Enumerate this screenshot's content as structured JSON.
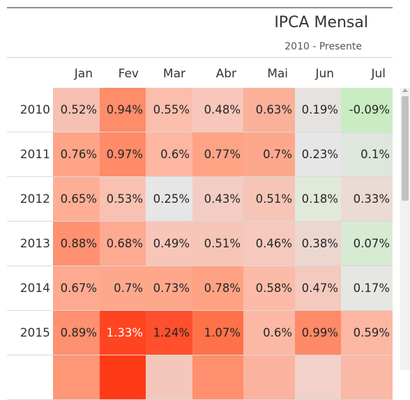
{
  "title": "IPCA Mensal",
  "subtitle": "2010 - Presente",
  "months": [
    "Jan",
    "Fev",
    "Mar",
    "Abr",
    "Mai",
    "Jun",
    "Jul"
  ],
  "rows": [
    {
      "year": "2010",
      "values": [
        "0.52%",
        "0.94%",
        "0.55%",
        "0.48%",
        "0.63%",
        "0.19%",
        "-0.09%"
      ],
      "colors": [
        "#f6c0b2",
        "#ff8c6b",
        "#fbbeac",
        "#f8c6ba",
        "#fbb09a",
        "#e5e2df",
        "#c9ecc2"
      ]
    },
    {
      "year": "2011",
      "values": [
        "0.76%",
        "0.97%",
        "0.6%",
        "0.77%",
        "0.7%",
        "0.23%",
        "0.1%"
      ],
      "colors": [
        "#ffa486",
        "#ff8b69",
        "#fdb6a2",
        "#ffa385",
        "#fda88d",
        "#e6e6e6",
        "#dde7dc"
      ]
    },
    {
      "year": "2012",
      "values": [
        "0.65%",
        "0.53%",
        "0.25%",
        "0.43%",
        "0.51%",
        "0.18%",
        "0.33%"
      ],
      "colors": [
        "#feae95",
        "#f9c1b2",
        "#e6e6e6",
        "#f3cdc4",
        "#f6c5b8",
        "#e1ead9",
        "#ecdad5"
      ]
    },
    {
      "year": "2013",
      "values": [
        "0.88%",
        "0.68%",
        "0.49%",
        "0.51%",
        "0.46%",
        "0.38%",
        "0.07%"
      ],
      "colors": [
        "#ff9171",
        "#fdaa91",
        "#f7c6b9",
        "#f6c5b8",
        "#f5c9bd",
        "#ecd6d0",
        "#d7ebd3"
      ]
    },
    {
      "year": "2014",
      "values": [
        "0.67%",
        "0.7%",
        "0.73%",
        "0.78%",
        "0.58%",
        "0.47%",
        "0.17%"
      ],
      "colors": [
        "#feaa90",
        "#fda88d",
        "#fea78b",
        "#ffa284",
        "#fbbba8",
        "#f4c9be",
        "#e5e7e2"
      ]
    },
    {
      "year": "2015",
      "values": [
        "0.89%",
        "1.33%",
        "1.24%",
        "1.07%",
        "0.6%",
        "0.99%",
        "0.59%"
      ],
      "colors": [
        "#ff9070",
        "#ff4420",
        "#ff4f2c",
        "#ff7249",
        "#fbb8a4",
        "#ff8a67",
        "#fcb7a3"
      ]
    },
    {
      "year": "",
      "values": [
        "",
        "",
        "",
        "",
        "",
        "",
        ""
      ],
      "colors": [
        "#ff9676",
        "#ff3a17",
        "#f3c7bb",
        "#ff8f6e",
        "#fbb3a0",
        "#f1d1c9",
        "#fab8a6"
      ]
    }
  ],
  "highlight_text_cells": [
    [
      5,
      1
    ]
  ]
}
